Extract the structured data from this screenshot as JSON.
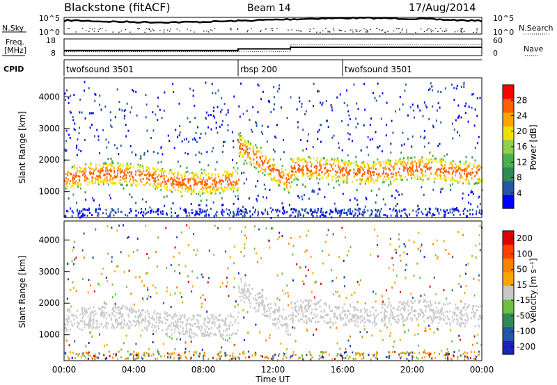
{
  "header": {
    "title": "Blackstone (fitACF)",
    "beam": "Beam 14",
    "date": "17/Aug/2014"
  },
  "chart_data": [
    {
      "type": "line",
      "panel": "noise",
      "left_label": "N.Sky",
      "right_label": "N.Search",
      "left_ticks": [
        "10^5",
        "10^0"
      ],
      "right_ticks": [
        "10^5",
        "10^0"
      ],
      "scale": "log"
    },
    {
      "type": "line",
      "panel": "frequency",
      "left_label_top": "Freq.",
      "left_label_bottom": "[MHz]",
      "right_label": "Nave",
      "left_ticks": [
        18,
        8
      ],
      "right_ticks": [
        60,
        0
      ],
      "ylim": [
        8,
        18
      ],
      "freq": {
        "x_hours": [
          0,
          10,
          10,
          13,
          13,
          24
        ],
        "mhz": [
          11,
          11,
          12,
          12,
          13,
          13
        ]
      },
      "nave": {
        "x_hours": [
          0,
          13,
          13,
          24
        ],
        "value": [
          14,
          14,
          40,
          40
        ]
      }
    },
    {
      "type": "table",
      "panel": "cpid",
      "label": "CPID",
      "segments": [
        {
          "start_hours": 0,
          "end_hours": 10,
          "name": "twofsound 3501"
        },
        {
          "start_hours": 10,
          "end_hours": 16,
          "name": "rbsp 200"
        },
        {
          "start_hours": 16,
          "end_hours": 24,
          "name": "twofsound 3501"
        }
      ]
    },
    {
      "type": "heatmap",
      "panel": "power",
      "ylabel": "Slant Range [km]",
      "ylim": [
        180,
        4600
      ],
      "y_ticks": [
        1000,
        2000,
        3000,
        4000
      ],
      "xlim": [
        0,
        24
      ],
      "colorbar_label": "Power [dB]",
      "colorbar_ticks": [
        4,
        8,
        12,
        16,
        20,
        24,
        28
      ],
      "colorbar_range": [
        0,
        32
      ],
      "colors": [
        "#0000ff",
        "#2457a6",
        "#2e8b57",
        "#4caf50",
        "#8fd14f",
        "#f0e000",
        "#ffa500",
        "#ff6000",
        "#ff0000"
      ]
    },
    {
      "type": "heatmap",
      "panel": "velocity",
      "ylabel": "Slant Range [km]",
      "ylim": [
        180,
        4600
      ],
      "y_ticks": [
        1000,
        2000,
        3000,
        4000
      ],
      "xlim": [
        0,
        24
      ],
      "xlabel": "Time UT",
      "x_ticks": [
        "00:00",
        "04:00",
        "08:00",
        "12:00",
        "16:00",
        "20:00",
        "00:00"
      ],
      "colorbar_label": "Velocity [m s⁻¹]",
      "colorbar_ticks": [
        "200",
        "100",
        "50",
        "15",
        "-15",
        "-50",
        "-100",
        "-200"
      ],
      "colors": [
        "#2020c0",
        "#2457a6",
        "#2e8b57",
        "#6cc040",
        "#c8c8c8",
        "#ffa500",
        "#ff8000",
        "#ff4000",
        "#e00000"
      ]
    }
  ]
}
